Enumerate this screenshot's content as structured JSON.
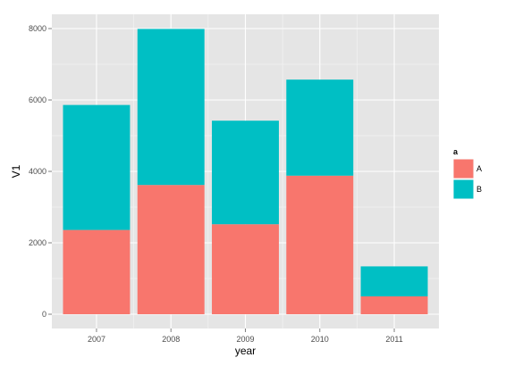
{
  "chart_data": {
    "type": "bar",
    "stacked": true,
    "categories": [
      "2007",
      "2008",
      "2009",
      "2010",
      "2011"
    ],
    "series": [
      {
        "name": "A",
        "color": "#F8766D",
        "values": [
          2360,
          3620,
          2520,
          3880,
          500
        ]
      },
      {
        "name": "B",
        "color": "#00BFC4",
        "values": [
          3500,
          4370,
          2900,
          2690,
          840
        ]
      }
    ],
    "xlabel": "year",
    "ylabel": "V1",
    "ylim": [
      -400,
      8400
    ],
    "yticks": [
      0,
      2000,
      4000,
      6000,
      8000
    ],
    "ytick_labels": [
      "0",
      "2000",
      "4000",
      "6000",
      "8000"
    ],
    "grid": true,
    "legend": {
      "title": "a",
      "placement": "right"
    },
    "panel_background": "#E5E5E5",
    "grid_color": "#FFFFFF"
  }
}
